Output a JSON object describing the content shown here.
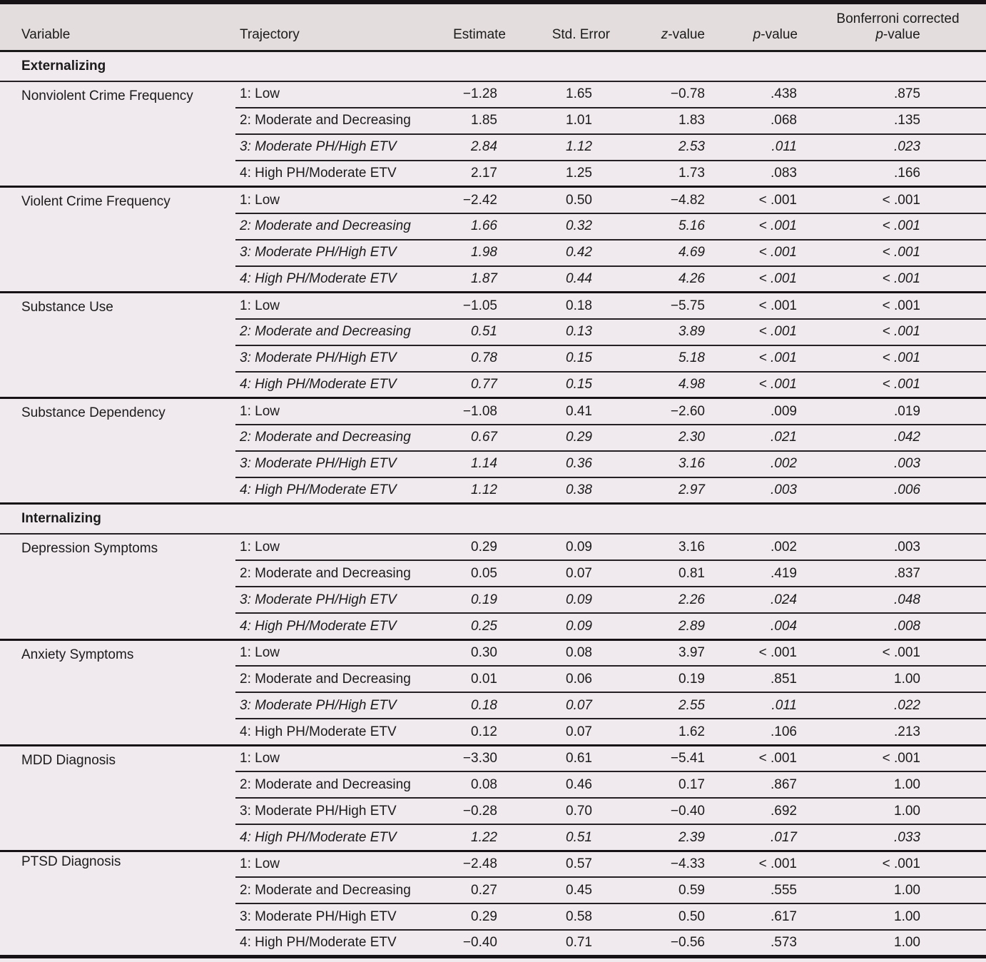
{
  "table": {
    "header": {
      "variable": "Variable",
      "trajectory": "Trajectory",
      "estimate": "Estimate",
      "std_error": "Std. Error",
      "z_italic": "z",
      "z_rest": "-value",
      "p_italic": "p",
      "p_rest": "-value",
      "bonf_line1": "Bonferroni corrected",
      "bonf_p_italic": "p",
      "bonf_p_rest": "-value"
    },
    "sections": [
      {
        "title": "Externalizing",
        "groups": [
          {
            "variable": "Nonviolent Crime Frequency",
            "rows": [
              {
                "trajectory": "1: Low",
                "estimate": "−1.28",
                "std_error": "1.65",
                "z": "−0.78",
                "p": ".438",
                "p_bonf": ".875",
                "italic": false
              },
              {
                "trajectory": "2: Moderate and Decreasing",
                "estimate": "1.85",
                "std_error": "1.01",
                "z": "1.83",
                "p": ".068",
                "p_bonf": ".135",
                "italic": false
              },
              {
                "trajectory": "3: Moderate PH/High ETV",
                "estimate": "2.84",
                "std_error": "1.12",
                "z": "2.53",
                "p": ".011",
                "p_bonf": ".023",
                "italic": true
              },
              {
                "trajectory": "4: High PH/Moderate ETV",
                "estimate": "2.17",
                "std_error": "1.25",
                "z": "1.73",
                "p": ".083",
                "p_bonf": ".166",
                "italic": false
              }
            ]
          },
          {
            "variable": "Violent Crime Frequency",
            "rows": [
              {
                "trajectory": "1: Low",
                "estimate": "−2.42",
                "std_error": "0.50",
                "z": "−4.82",
                "p": "< .001",
                "p_bonf": "< .001",
                "italic": false
              },
              {
                "trajectory": "2: Moderate and Decreasing",
                "estimate": "1.66",
                "std_error": "0.32",
                "z": "5.16",
                "p": "< .001",
                "p_bonf": "< .001",
                "italic": true
              },
              {
                "trajectory": "3: Moderate PH/High ETV",
                "estimate": "1.98",
                "std_error": "0.42",
                "z": "4.69",
                "p": "< .001",
                "p_bonf": "< .001",
                "italic": true
              },
              {
                "trajectory": "4: High PH/Moderate ETV",
                "estimate": "1.87",
                "std_error": "0.44",
                "z": "4.26",
                "p": "< .001",
                "p_bonf": "< .001",
                "italic": true
              }
            ]
          },
          {
            "variable": "Substance Use",
            "rows": [
              {
                "trajectory": "1: Low",
                "estimate": "−1.05",
                "std_error": "0.18",
                "z": "−5.75",
                "p": "< .001",
                "p_bonf": "< .001",
                "italic": false
              },
              {
                "trajectory": "2: Moderate and Decreasing",
                "estimate": "0.51",
                "std_error": "0.13",
                "z": "3.89",
                "p": "< .001",
                "p_bonf": "< .001",
                "italic": true
              },
              {
                "trajectory": "3: Moderate PH/High ETV",
                "estimate": "0.78",
                "std_error": "0.15",
                "z": "5.18",
                "p": "< .001",
                "p_bonf": "< .001",
                "italic": true
              },
              {
                "trajectory": "4: High PH/Moderate ETV",
                "estimate": "0.77",
                "std_error": "0.15",
                "z": "4.98",
                "p": "< .001",
                "p_bonf": "< .001",
                "italic": true
              }
            ]
          },
          {
            "variable": "Substance Dependency",
            "rows": [
              {
                "trajectory": "1: Low",
                "estimate": "−1.08",
                "std_error": "0.41",
                "z": "−2.60",
                "p": ".009",
                "p_bonf": ".019",
                "italic": false
              },
              {
                "trajectory": "2: Moderate and Decreasing",
                "estimate": "0.67",
                "std_error": "0.29",
                "z": "2.30",
                "p": ".021",
                "p_bonf": ".042",
                "italic": true
              },
              {
                "trajectory": "3: Moderate PH/High ETV",
                "estimate": "1.14",
                "std_error": "0.36",
                "z": "3.16",
                "p": ".002",
                "p_bonf": ".003",
                "italic": true
              },
              {
                "trajectory": "4: High PH/Moderate ETV",
                "estimate": "1.12",
                "std_error": "0.38",
                "z": "2.97",
                "p": ".003",
                "p_bonf": ".006",
                "italic": true
              }
            ]
          }
        ]
      },
      {
        "title": "Internalizing",
        "groups": [
          {
            "variable": "Depression Symptoms",
            "rows": [
              {
                "trajectory": "1: Low",
                "estimate": "0.29",
                "std_error": "0.09",
                "z": "3.16",
                "p": ".002",
                "p_bonf": ".003",
                "italic": false
              },
              {
                "trajectory": "2: Moderate and Decreasing",
                "estimate": "0.05",
                "std_error": "0.07",
                "z": "0.81",
                "p": ".419",
                "p_bonf": ".837",
                "italic": false
              },
              {
                "trajectory": "3: Moderate PH/High ETV",
                "estimate": "0.19",
                "std_error": "0.09",
                "z": "2.26",
                "p": ".024",
                "p_bonf": ".048",
                "italic": true
              },
              {
                "trajectory": "4: High PH/Moderate ETV",
                "estimate": "0.25",
                "std_error": "0.09",
                "z": "2.89",
                "p": ".004",
                "p_bonf": ".008",
                "italic": true
              }
            ]
          },
          {
            "variable": "Anxiety Symptoms",
            "rows": [
              {
                "trajectory": "1: Low",
                "estimate": "0.30",
                "std_error": "0.08",
                "z": "3.97",
                "p": "< .001",
                "p_bonf": "< .001",
                "italic": false
              },
              {
                "trajectory": "2: Moderate and Decreasing",
                "estimate": "0.01",
                "std_error": "0.06",
                "z": "0.19",
                "p": ".851",
                "p_bonf": "1.00",
                "italic": false
              },
              {
                "trajectory": "3: Moderate PH/High ETV",
                "estimate": "0.18",
                "std_error": "0.07",
                "z": "2.55",
                "p": ".011",
                "p_bonf": ".022",
                "italic": true
              },
              {
                "trajectory": "4: High PH/Moderate ETV",
                "estimate": "0.12",
                "std_error": "0.07",
                "z": "1.62",
                "p": ".106",
                "p_bonf": ".213",
                "italic": false
              }
            ]
          },
          {
            "variable": "MDD Diagnosis",
            "rows": [
              {
                "trajectory": "1: Low",
                "estimate": "−3.30",
                "std_error": "0.61",
                "z": "−5.41",
                "p": "< .001",
                "p_bonf": "< .001",
                "italic": false
              },
              {
                "trajectory": "2: Moderate and Decreasing",
                "estimate": "0.08",
                "std_error": "0.46",
                "z": "0.17",
                "p": ".867",
                "p_bonf": "1.00",
                "italic": false
              },
              {
                "trajectory": "3: Moderate PH/High ETV",
                "estimate": "−0.28",
                "std_error": "0.70",
                "z": "−0.40",
                "p": ".692",
                "p_bonf": "1.00",
                "italic": false
              },
              {
                "trajectory": "4: High PH/Moderate ETV",
                "estimate": "1.22",
                "std_error": "0.51",
                "z": "2.39",
                "p": ".017",
                "p_bonf": ".033",
                "italic": true
              }
            ]
          },
          {
            "variable": "PTSD Diagnosis",
            "raised_label": true,
            "rows": [
              {
                "trajectory": "1: Low",
                "estimate": "−2.48",
                "std_error": "0.57",
                "z": "−4.33",
                "p": "< .001",
                "p_bonf": "< .001",
                "italic": false
              },
              {
                "trajectory": "2: Moderate and Decreasing",
                "estimate": "0.27",
                "std_error": "0.45",
                "z": "0.59",
                "p": ".555",
                "p_bonf": "1.00",
                "italic": false
              },
              {
                "trajectory": "3: Moderate PH/High ETV",
                "estimate": "0.29",
                "std_error": "0.58",
                "z": "0.50",
                "p": ".617",
                "p_bonf": "1.00",
                "italic": false
              },
              {
                "trajectory": "4: High PH/Moderate ETV",
                "estimate": "−0.40",
                "std_error": "0.71",
                "z": "−0.56",
                "p": ".573",
                "p_bonf": "1.00",
                "italic": false
              }
            ]
          }
        ]
      }
    ],
    "colors": {
      "header_bg": "#e4dddd",
      "body_bg": "#f0eaee",
      "rule": "#1a1a1a",
      "text": "#1b1b1b"
    }
  }
}
